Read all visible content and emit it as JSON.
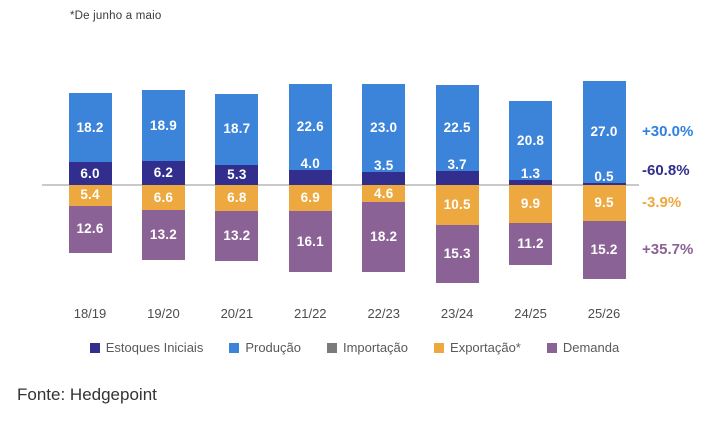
{
  "page": {
    "source": "Fonte: Hedgepoint"
  },
  "chart_data": {
    "type": "bar",
    "subtype": "diverging-stacked-column",
    "title": "",
    "note": "*De junho a maio",
    "categories": [
      "18/19",
      "19/20",
      "20/21",
      "21/22",
      "22/23",
      "23/24",
      "24/25",
      "25/26"
    ],
    "series": [
      {
        "name": "Estoques Iniciais",
        "color": "#312e8e",
        "stack": "positive",
        "order_from_baseline": 1,
        "values": [
          6.0,
          6.2,
          5.3,
          4.0,
          3.5,
          3.7,
          1.3,
          0.5
        ],
        "change_label": "-60.8%",
        "change_label_color": "#312e8e"
      },
      {
        "name": "Produção",
        "color": "#3c83da",
        "stack": "positive",
        "order_from_baseline": 2,
        "values": [
          18.2,
          18.9,
          18.7,
          22.6,
          23.0,
          22.5,
          20.8,
          27.0
        ],
        "change_label": "+30.0%",
        "change_label_color": "#2f80e0"
      },
      {
        "name": "Importação",
        "color": "#7a7a7a",
        "stack": "none",
        "order_from_baseline": 0,
        "values": [],
        "change_label": "",
        "change_label_color": ""
      },
      {
        "name": "Exportação*",
        "color": "#eda93f",
        "stack": "negative",
        "order_from_baseline": 1,
        "values": [
          5.4,
          6.6,
          6.8,
          6.9,
          4.6,
          10.5,
          9.9,
          9.5
        ],
        "change_label": "-3.9%",
        "change_label_color": "#f0a63c"
      },
      {
        "name": "Demanda",
        "color": "#8b6295",
        "stack": "negative",
        "order_from_baseline": 2,
        "values": [
          12.6,
          13.2,
          13.2,
          16.1,
          18.2,
          15.3,
          11.2,
          15.2
        ],
        "change_label": "+35.7%",
        "change_label_color": "#8b6295"
      }
    ],
    "legend": [
      "Estoques Iniciais",
      "Produção",
      "Importação",
      "Exportação*",
      "Demanda"
    ],
    "legend_position": "bottom",
    "grid": false,
    "value_label_color": "#ffffff",
    "baseline_color": "#c9c9c9",
    "axis_label_color": "#4d4d4d",
    "legend_text_color": "#595959"
  }
}
